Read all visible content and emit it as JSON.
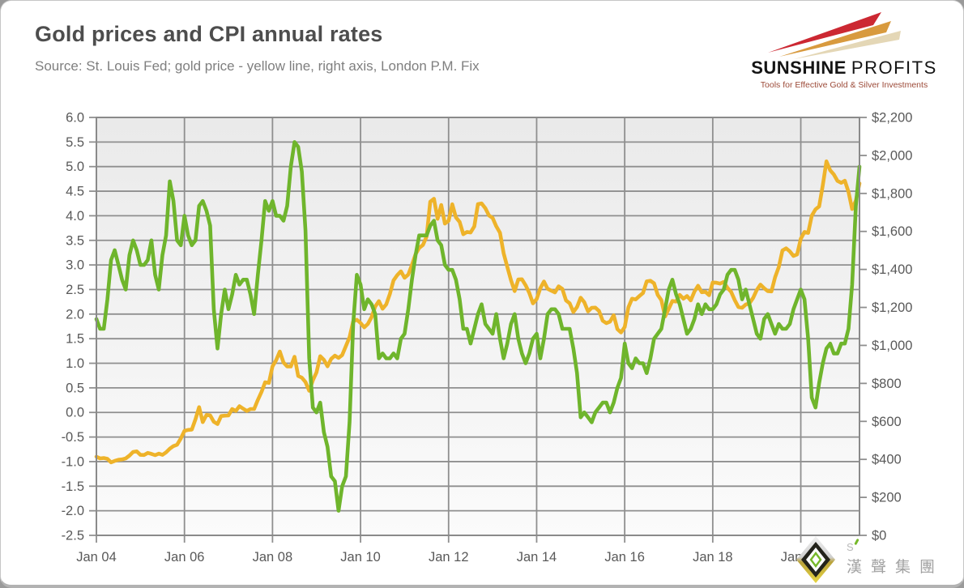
{
  "header": {
    "title": "Gold prices and CPI annual rates",
    "subtitle": "Source: St. Louis Fed; gold price - yellow line, right axis, London P.M. Fix"
  },
  "brand": {
    "name_bold": "SUNSHINE",
    "name_light": "PROFITS",
    "tagline": "Tools for Effective Gold & Silver Investments"
  },
  "footer": {
    "monogram": "S",
    "company_name": "漢聲集團"
  },
  "colors": {
    "cpi_green": "#6fb52c",
    "gold_yellow": "#eeb32a",
    "gridline": "#8f8f8f",
    "plot_border": "#8a8a8a",
    "axis_text": "#595959",
    "plot_bg_top": "#eaeaea",
    "plot_bg_bottom": "#fbfbfb",
    "logo_red": "#cc2832",
    "logo_gold": "#d89a3e",
    "logo_beige": "#e4d7b6"
  },
  "chart_data": {
    "type": "line",
    "title": "Gold prices and CPI annual rates",
    "frequency": "monthly",
    "x_start": "Jan 2004",
    "x_end": "May 2021",
    "grid": true,
    "legend_position": "none",
    "x_tick_labels": [
      "Jan 04",
      "Jan 06",
      "Jan 08",
      "Jan 10",
      "Jan 12",
      "Jan 14",
      "Jan 16",
      "Jan 18",
      "Jan 20"
    ],
    "x_tick_month_indices": [
      0,
      24,
      48,
      72,
      96,
      120,
      144,
      168,
      192
    ],
    "axes": {
      "left": {
        "min": -2.5,
        "max": 6.0,
        "step": 0.5,
        "decimals": 1,
        "prefix": ""
      },
      "right": {
        "min": 0,
        "max": 2200,
        "step": 200,
        "decimals": 0,
        "prefix": "$"
      }
    },
    "series": [
      {
        "name": "Gold price (London P.M. Fix, USD)",
        "axis": "right",
        "color": "#eeb32a",
        "values": [
          414,
          405,
          407,
          403,
          384,
          392,
          398,
          400,
          405,
          420,
          439,
          442,
          424,
          423,
          434,
          429,
          422,
          430,
          424,
          437,
          456,
          470,
          477,
          510,
          550,
          555,
          557,
          611,
          675,
          596,
          634,
          632,
          598,
          586,
          628,
          630,
          631,
          665,
          655,
          680,
          667,
          655,
          665,
          665,
          713,
          755,
          806,
          803,
          890,
          922,
          968,
          910,
          889,
          889,
          940,
          839,
          830,
          807,
          761,
          816,
          858,
          943,
          924,
          890,
          929,
          946,
          934,
          949,
          997,
          1043,
          1127,
          1135,
          1118,
          1095,
          1113,
          1149,
          1205,
          1233,
          1193,
          1216,
          1271,
          1342,
          1370,
          1390,
          1356,
          1373,
          1424,
          1480,
          1513,
          1529,
          1573,
          1756,
          1772,
          1666,
          1739,
          1641,
          1656,
          1743,
          1674,
          1650,
          1585,
          1597,
          1594,
          1626,
          1744,
          1747,
          1722,
          1684,
          1671,
          1627,
          1593,
          1485,
          1414,
          1343,
          1286,
          1347,
          1348,
          1316,
          1276,
          1221,
          1244,
          1301,
          1336,
          1298,
          1288,
          1279,
          1311,
          1297,
          1237,
          1222,
          1176,
          1202,
          1251,
          1227,
          1179,
          1198,
          1199,
          1181,
          1130,
          1117,
          1125,
          1159,
          1086,
          1068,
          1097,
          1200,
          1246,
          1242,
          1260,
          1276,
          1337,
          1340,
          1327,
          1266,
          1238,
          1152,
          1192,
          1234,
          1231,
          1266,
          1246,
          1260,
          1237,
          1283,
          1314,
          1280,
          1282,
          1264,
          1331,
          1330,
          1325,
          1334,
          1303,
          1282,
          1238,
          1202,
          1198,
          1215,
          1221,
          1250,
          1292,
          1320,
          1301,
          1286,
          1284,
          1359,
          1413,
          1500,
          1511,
          1495,
          1471,
          1479,
          1561,
          1597,
          1592,
          1683,
          1716,
          1732,
          1843,
          1969,
          1922,
          1900,
          1866,
          1856,
          1867,
          1808,
          1718,
          1762,
          1853
        ]
      },
      {
        "name": "CPI annual rate (%)",
        "axis": "left",
        "color": "#6fb52c",
        "values": [
          1.9,
          1.7,
          1.7,
          2.3,
          3.1,
          3.3,
          3.0,
          2.7,
          2.5,
          3.2,
          3.5,
          3.3,
          3.0,
          3.0,
          3.1,
          3.5,
          2.8,
          2.5,
          3.2,
          3.6,
          4.7,
          4.3,
          3.5,
          3.4,
          4.0,
          3.6,
          3.4,
          3.5,
          4.2,
          4.3,
          4.1,
          3.8,
          2.1,
          1.3,
          2.0,
          2.5,
          2.1,
          2.4,
          2.8,
          2.6,
          2.7,
          2.7,
          2.4,
          2.0,
          2.8,
          3.5,
          4.3,
          4.1,
          4.3,
          4.0,
          4.0,
          3.9,
          4.2,
          5.0,
          5.5,
          5.4,
          4.9,
          3.7,
          1.1,
          0.1,
          0.0,
          0.2,
          -0.4,
          -0.7,
          -1.3,
          -1.4,
          -2.0,
          -1.5,
          -1.3,
          -0.2,
          1.8,
          2.8,
          2.6,
          2.1,
          2.3,
          2.2,
          2.0,
          1.1,
          1.2,
          1.1,
          1.1,
          1.2,
          1.1,
          1.5,
          1.6,
          2.1,
          2.7,
          3.2,
          3.6,
          3.6,
          3.6,
          3.8,
          3.9,
          3.5,
          3.4,
          3.0,
          2.9,
          2.9,
          2.7,
          2.3,
          1.7,
          1.7,
          1.4,
          1.7,
          2.0,
          2.2,
          1.8,
          1.7,
          1.6,
          2.0,
          1.5,
          1.1,
          1.4,
          1.8,
          2.0,
          1.5,
          1.2,
          1.0,
          1.2,
          1.5,
          1.6,
          1.1,
          1.5,
          2.0,
          2.1,
          2.1,
          2.0,
          1.7,
          1.7,
          1.7,
          1.3,
          0.8,
          -0.1,
          0.0,
          -0.1,
          -0.2,
          0.0,
          0.1,
          0.2,
          0.2,
          0.0,
          0.2,
          0.5,
          0.7,
          1.4,
          1.0,
          0.9,
          1.1,
          1.0,
          1.0,
          0.8,
          1.1,
          1.5,
          1.6,
          1.7,
          2.1,
          2.5,
          2.7,
          2.4,
          2.2,
          1.9,
          1.6,
          1.7,
          1.9,
          2.2,
          2.0,
          2.2,
          2.1,
          2.1,
          2.2,
          2.4,
          2.5,
          2.8,
          2.9,
          2.9,
          2.7,
          2.3,
          2.5,
          2.2,
          1.9,
          1.6,
          1.5,
          1.9,
          2.0,
          1.8,
          1.6,
          1.8,
          1.7,
          1.7,
          1.8,
          2.1,
          2.3,
          2.5,
          2.3,
          1.5,
          0.3,
          0.1,
          0.6,
          1.0,
          1.3,
          1.4,
          1.2,
          1.2,
          1.4,
          1.4,
          1.7,
          2.6,
          4.2,
          5.0
        ]
      }
    ]
  }
}
